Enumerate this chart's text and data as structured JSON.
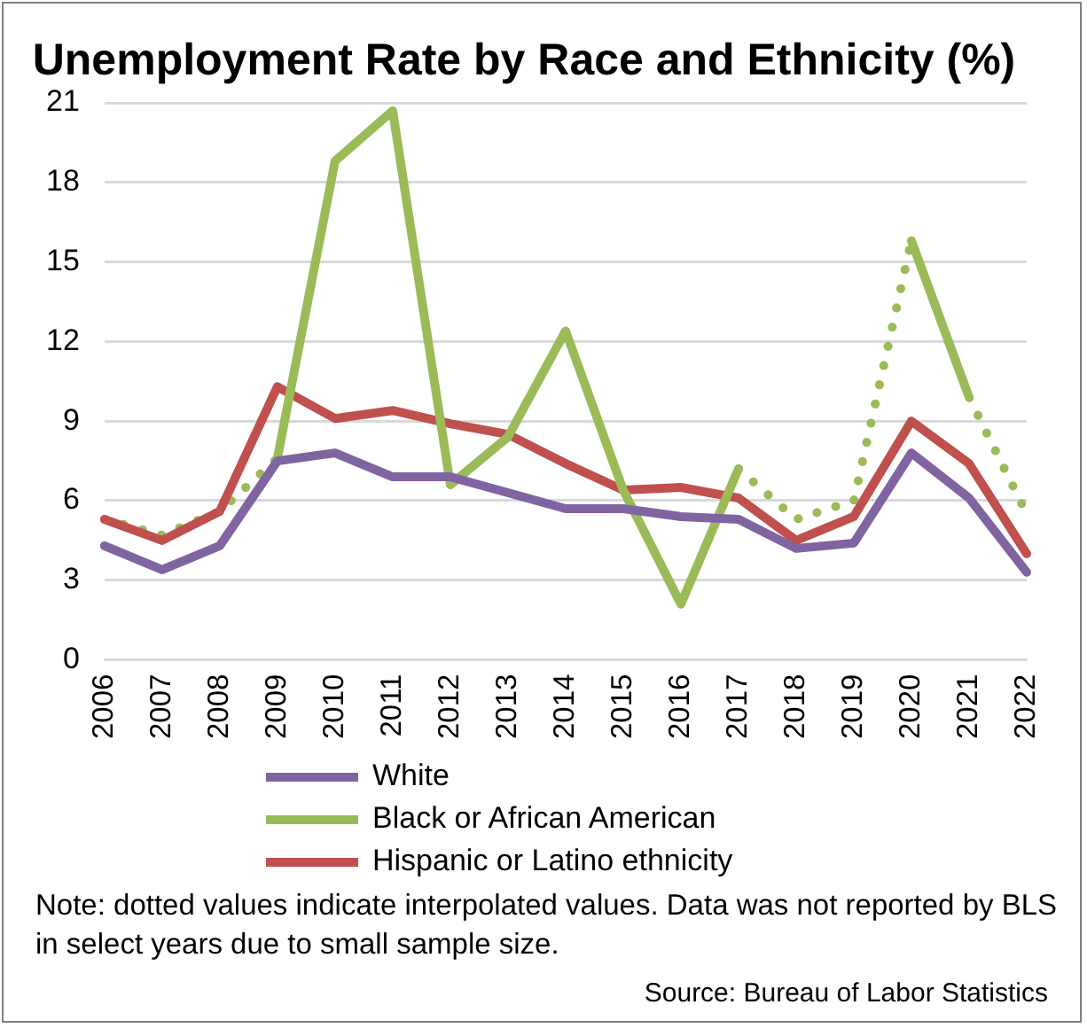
{
  "chart_data": {
    "type": "line",
    "title": "Unemployment Rate by Race and Ethnicity (%)",
    "categories": [
      "2006",
      "2007",
      "2008",
      "2009",
      "2010",
      "2011",
      "2012",
      "2013",
      "2014",
      "2015",
      "2016",
      "2017",
      "2018",
      "2019",
      "2020",
      "2021",
      "2022"
    ],
    "series": [
      {
        "name": "White",
        "color": "#8064a2",
        "line_style": "solid",
        "values": [
          4.3,
          3.4,
          4.3,
          7.5,
          7.8,
          6.9,
          6.9,
          6.3,
          5.7,
          5.7,
          5.4,
          5.3,
          4.2,
          4.4,
          7.8,
          6.1,
          3.3
        ]
      },
      {
        "name": "Black or African American",
        "color": "#9bbb59",
        "line_style": "solid",
        "values": [
          null,
          null,
          null,
          7.6,
          18.8,
          20.7,
          6.6,
          8.4,
          12.4,
          6.4,
          2.1,
          7.2,
          null,
          null,
          15.8,
          9.9,
          null
        ]
      },
      {
        "name": "Hispanic or Latino ethnicity",
        "color": "#c0504d",
        "line_style": "solid",
        "values": [
          5.3,
          4.5,
          5.6,
          10.3,
          9.1,
          9.4,
          8.9,
          8.5,
          7.4,
          6.4,
          6.5,
          6.1,
          4.5,
          5.4,
          9.0,
          7.4,
          4.0
        ]
      },
      {
        "color": "#9bbb59",
        "line_style": "dotted",
        "values": [
          5.3,
          4.7,
          5.6,
          7.6,
          null,
          null,
          null,
          null,
          null,
          null,
          null,
          7.2,
          5.3,
          6.0,
          15.8,
          9.9,
          5.5
        ]
      }
    ],
    "ylim": [
      0,
      21
    ],
    "yticks": [
      0,
      3,
      6,
      9,
      12,
      15,
      18,
      21
    ],
    "grid": "y",
    "legend": "bottom",
    "marker": "none",
    "annotations": [
      "Note: dotted values indicate interpolated values. Data was not reported by BLS in select years due to small sample size.",
      "Source: Bureau of Labor Statistics"
    ]
  }
}
